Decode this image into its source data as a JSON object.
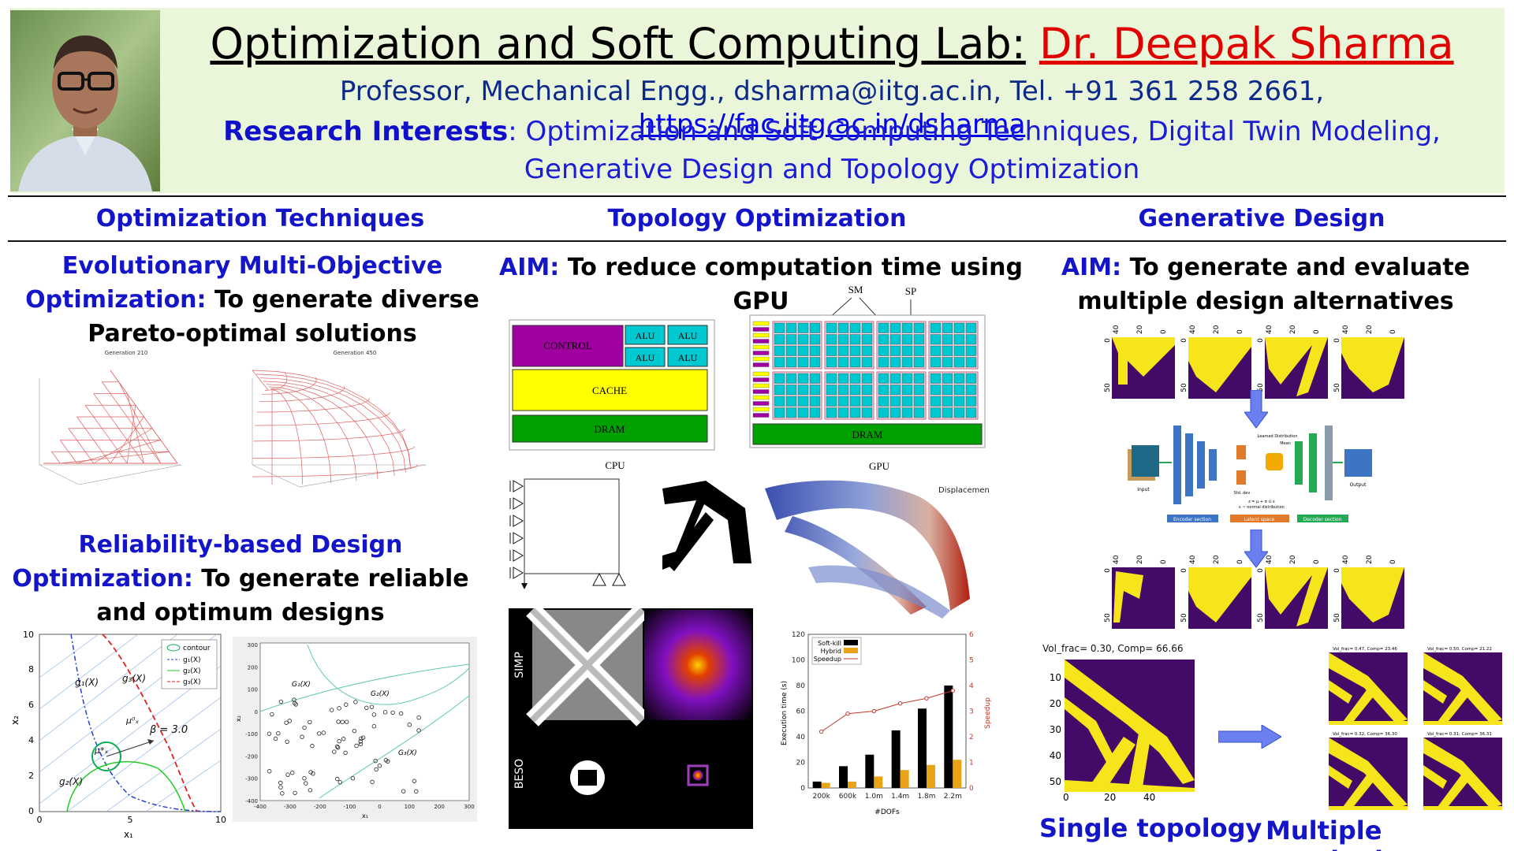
{
  "header": {
    "title_lab": "Optimization and Soft Computing Lab:",
    "title_name": "Dr. Deepak Sharma",
    "contact": "Professor, Mechanical Engg., dsharma@iitg.ac.in, Tel. +91 361 258 2661,",
    "url": "https://fac.iitg.ac.in/dsharma",
    "research_label": "Research Interests",
    "research_text": ": Optimization and Soft Computing Techniques, Digital Twin Modeling, Generative Design and Topology Optimization"
  },
  "columns": {
    "left": "Optimization Techniques",
    "middle": "Topology Optimization",
    "right": "Generative Design"
  },
  "left": {
    "emo_title": "Evolutionary Multi-Objective",
    "emo_label": "Optimization:",
    "emo_text": "To generate diverse Pareto-optimal solutions",
    "plot1_title": "Generation 210",
    "plot2_title": "Generation 450",
    "rbdo_title": "Reliability-based Design",
    "rbdo_label": "Optimization:",
    "rbdo_text": "To generate reliable and optimum designs",
    "rb_legend": [
      "contour",
      "g₁(X)",
      "g₂(X)",
      "g₃(X)"
    ],
    "rb_labels": {
      "g1": "g₁(X)",
      "g2": "g₂(X)",
      "g3": "g₃(X)",
      "beta": "β = 3.0",
      "mu0": "μ⁰ₓ",
      "mustar": "μ*ₓ"
    },
    "rb_xlabel": "x₁",
    "rb_ylabel": "x₂",
    "rb_xticks": [
      "0",
      "5",
      "10"
    ],
    "rb_yticks": [
      "0",
      "2",
      "4",
      "6",
      "8",
      "10"
    ],
    "sc_labels": {
      "g1": "G₁(X)",
      "g2": "G₂(X)",
      "g3": "G₃(X)"
    },
    "sc_xticks": [
      "-400",
      "-300",
      "-200",
      "-100",
      "0",
      "100",
      "200",
      "300"
    ],
    "sc_yticks": [
      "300",
      "200",
      "100",
      "0",
      "-100",
      "-200",
      "-300",
      "-400"
    ],
    "sc_xlabel": "x₁",
    "sc_ylabel": "x₂"
  },
  "middle": {
    "aim_label": "AIM:",
    "aim_text": "To reduce computation time using GPU",
    "cpu": {
      "control": "CONTROL",
      "alu": "ALU",
      "cache": "CACHE",
      "dram": "DRAM",
      "caption": "CPU"
    },
    "gpu": {
      "sm": "SM",
      "sp": "SP",
      "dram": "DRAM",
      "caption": "GPU"
    },
    "displacement_label": "Displacemen",
    "simp_label": "SIMP",
    "beso_label": "BESO",
    "chart_data": {
      "type": "bar",
      "categories": [
        "200k",
        "600k",
        "1.0m",
        "1.4m",
        "1.8m",
        "2.2m"
      ],
      "series": [
        {
          "name": "Soft-kill",
          "values": [
            5,
            17,
            26,
            45,
            62,
            80
          ],
          "color": "#000000"
        },
        {
          "name": "Hybrid",
          "values": [
            4,
            5,
            9,
            14,
            18,
            22
          ],
          "color": "#e8a317"
        },
        {
          "name": "Speedup",
          "values": [
            2.2,
            2.9,
            3.0,
            3.3,
            3.5,
            3.8
          ],
          "color": "#c0392b",
          "axis": "right"
        }
      ],
      "xlabel": "#DOFs",
      "ylabel": "Execution time (s)",
      "y2label": "Speedup",
      "ylim": [
        0,
        120
      ],
      "y2lim": [
        0,
        6
      ],
      "yticks": [
        "0",
        "20",
        "40",
        "60",
        "80",
        "100",
        "120"
      ],
      "y2ticks": [
        "0",
        "1",
        "2",
        "3",
        "4",
        "5",
        "6"
      ],
      "legend": "top-left"
    }
  },
  "right": {
    "aim_label": "AIM:",
    "aim_text": "To generate and evaluate multiple design alternatives",
    "ticks_top": [
      "40",
      "20",
      "0"
    ],
    "tick_side": [
      "0",
      "50"
    ],
    "network": {
      "input": "Input",
      "output": "Output",
      "encoder": "Encoder section",
      "latent": "Latent space",
      "decoder": "Decoder section",
      "learned": "Learned Distribution",
      "mean": "Mean",
      "std": "Std. dev",
      "formula": "z = μ + σ ⊙ ε",
      "formula2": "ε ~ normal distribution"
    },
    "single_title": "Vol_frac= 0.30, Comp= 66.66",
    "single_yticks": [
      "10",
      "20",
      "30",
      "40",
      "50"
    ],
    "single_xticks": [
      "0",
      "20",
      "40"
    ],
    "multi_titles": [
      "Vol_frac= 0.47, Comp= 23.46",
      "Vol_frac= 0.50, Comp= 21.22",
      "Vol_frac= 0.32, Comp= 36.30",
      "Vol_frac= 0.31, Comp= 36.31"
    ],
    "single_caption": "Single topology",
    "multi_caption": "Multiple  topologies"
  }
}
